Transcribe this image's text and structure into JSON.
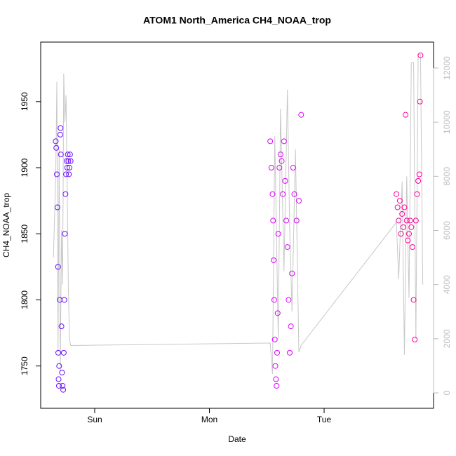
{
  "chart_data": {
    "type": "scatter",
    "title": "ATOM1 North_America CH4_NOAA_trop",
    "xlabel": "Date",
    "ylabel": "CH4_NOAA_trop",
    "xlim": [
      -0.471,
      2.954
    ],
    "ylim": [
      1718,
      1995
    ],
    "y2lim": [
      -570,
      12959
    ],
    "xticks": [
      {
        "value": 0,
        "label": "Sun"
      },
      {
        "value": 1,
        "label": "Mon"
      },
      {
        "value": 2,
        "label": "Tue"
      }
    ],
    "yticks": [
      1750,
      1800,
      1850,
      1900,
      1950
    ],
    "y2ticks": [
      0,
      2000,
      4000,
      6000,
      8000,
      10000,
      12000
    ],
    "series": [
      {
        "type": "line",
        "axis": "y2",
        "color": "#c8c8c8",
        "x": [
          -0.36,
          -0.34,
          -0.33,
          -0.32,
          -0.31,
          -0.3,
          -0.29,
          -0.28,
          -0.27,
          -0.26,
          -0.25,
          -0.23,
          -0.22,
          -0.21,
          1.53,
          1.55,
          1.57,
          1.6,
          1.62,
          1.65,
          1.68,
          1.7,
          1.72,
          1.75,
          1.78,
          1.8,
          2.63,
          2.65,
          2.68,
          2.7,
          2.72,
          2.74,
          2.76,
          2.78,
          2.8,
          2.82,
          2.84,
          2.86
        ],
        "values": [
          5000,
          8000,
          11500,
          1500,
          9000,
          800,
          6000,
          4000,
          11800,
          10000,
          11000,
          4000,
          2000,
          1750,
          1840,
          700,
          9500,
          2000,
          10500,
          4500,
          11200,
          6000,
          3000,
          9000,
          1500,
          1760,
          6300,
          4200,
          7800,
          1400,
          8000,
          3500,
          12200,
          12200,
          2000,
          12500,
          12500,
          4000
        ]
      },
      {
        "type": "scatter",
        "color": "#6a0dff",
        "x": [
          -0.34,
          -0.335,
          -0.33,
          -0.325,
          -0.32,
          -0.318,
          -0.315,
          -0.312,
          -0.31,
          -0.305,
          -0.3,
          -0.298,
          -0.295,
          -0.29,
          -0.285,
          -0.28,
          -0.275,
          -0.27,
          -0.265,
          -0.26,
          -0.255,
          -0.25,
          -0.245,
          -0.24,
          -0.235,
          -0.23,
          -0.225,
          -0.22,
          -0.215,
          -0.21
        ],
        "values": [
          1920,
          1915,
          1895,
          1870,
          1825,
          1760,
          1740,
          1735,
          1750,
          1800,
          1925,
          1930,
          1910,
          1780,
          1745,
          1735,
          1732,
          1760,
          1800,
          1850,
          1880,
          1895,
          1905,
          1900,
          1910,
          1905,
          1895,
          1900,
          1910,
          1905
        ]
      },
      {
        "type": "scatter",
        "color": "#dd00ff",
        "x": [
          1.53,
          1.54,
          1.55,
          1.555,
          1.56,
          1.565,
          1.57,
          1.575,
          1.58,
          1.585,
          1.59,
          1.595,
          1.6,
          1.61,
          1.62,
          1.63,
          1.64,
          1.65,
          1.66,
          1.67,
          1.68,
          1.69,
          1.7,
          1.71,
          1.72,
          1.73,
          1.74,
          1.76,
          1.78,
          1.8
        ],
        "values": [
          1920,
          1900,
          1880,
          1860,
          1830,
          1800,
          1770,
          1750,
          1740,
          1735,
          1760,
          1790,
          1850,
          1900,
          1910,
          1905,
          1880,
          1920,
          1890,
          1860,
          1840,
          1800,
          1760,
          1780,
          1820,
          1900,
          1880,
          1860,
          1875,
          1940
        ]
      },
      {
        "type": "scatter",
        "color": "#ff0099",
        "x": [
          2.63,
          2.64,
          2.65,
          2.66,
          2.67,
          2.68,
          2.69,
          2.7,
          2.71,
          2.72,
          2.73,
          2.74,
          2.75,
          2.76,
          2.77,
          2.78,
          2.79,
          2.8,
          2.81,
          2.82,
          2.83,
          2.84,
          2.835
        ],
        "values": [
          1880,
          1870,
          1860,
          1875,
          1850,
          1865,
          1855,
          1870,
          1940,
          1860,
          1845,
          1850,
          1860,
          1855,
          1840,
          1800,
          1770,
          1860,
          1880,
          1890,
          1895,
          1985,
          1950
        ]
      }
    ]
  }
}
